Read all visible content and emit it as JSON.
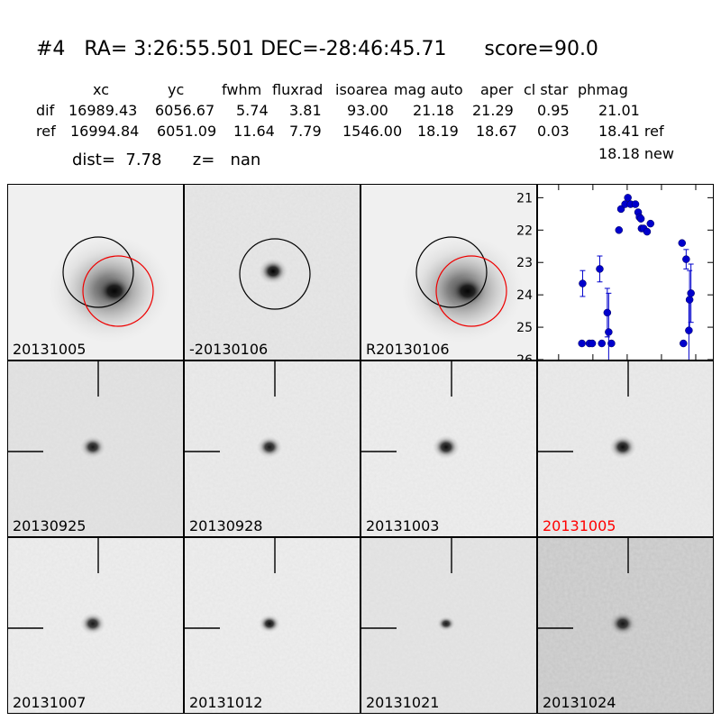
{
  "header": {
    "title": "#4   RA= 3:26:55.501 DEC=-28:46:45.71      score=90.0",
    "columns": [
      "xc",
      "yc",
      "fwhm",
      "fluxrad",
      "isoarea",
      "mag auto",
      "aper",
      "cl star",
      "phmag"
    ],
    "rows": [
      {
        "label": "dif",
        "values": [
          "16989.43",
          "6056.67",
          "5.74",
          "3.81",
          "93.00",
          "21.18",
          "21.29",
          "0.95",
          "21.01"
        ]
      },
      {
        "label": "ref",
        "values": [
          "16994.84",
          "6051.09",
          "11.64",
          "7.79",
          "1546.00",
          "18.19",
          "18.67",
          "0.03",
          "18.41 ref"
        ]
      }
    ],
    "dist_line": "dist=  7.78      z=   nan",
    "new_mag": "18.18 new"
  },
  "top_panels": [
    {
      "label": "20131005",
      "label_color": "#000000",
      "circles": "black+red"
    },
    {
      "label": "-20130106",
      "label_color": "#000000",
      "circles": "black"
    },
    {
      "label": "R20130106",
      "label_color": "#000000",
      "circles": "black+red"
    }
  ],
  "cutouts": [
    {
      "label": "20130925",
      "label_color": "#000000"
    },
    {
      "label": "20130928",
      "label_color": "#000000"
    },
    {
      "label": "20131003",
      "label_color": "#000000"
    },
    {
      "label": "20131005",
      "label_color": "#ff0000"
    },
    {
      "label": "20131007",
      "label_color": "#000000"
    },
    {
      "label": "20131012",
      "label_color": "#000000"
    },
    {
      "label": "20131021",
      "label_color": "#000000"
    },
    {
      "label": "20131024",
      "label_color": "#000000"
    }
  ],
  "chart_data": {
    "type": "scatter",
    "title": "",
    "xlabel": "",
    "ylabel": "",
    "xlim": [
      -130,
      125
    ],
    "ylim": [
      26,
      20.6
    ],
    "y_inverted": true,
    "xticks": [
      -100,
      -50,
      0,
      50,
      100
    ],
    "yticks": [
      21,
      22,
      23,
      24,
      25,
      26
    ],
    "grid": false,
    "marker_color": "#0000cc",
    "errorbar_color": "#0000cc",
    "points": [
      {
        "x": -66,
        "y": 25.5,
        "err": 0
      },
      {
        "x": -65,
        "y": 23.65,
        "err": 0.4
      },
      {
        "x": -55,
        "y": 25.5,
        "err": 0
      },
      {
        "x": -51,
        "y": 25.5,
        "err": 0
      },
      {
        "x": -40,
        "y": 23.2,
        "err": 0.4
      },
      {
        "x": -37,
        "y": 25.5,
        "err": 0
      },
      {
        "x": -29,
        "y": 24.55,
        "err": 0.75
      },
      {
        "x": -27,
        "y": 25.15,
        "err": 1.2
      },
      {
        "x": -23,
        "y": 25.5,
        "err": 0
      },
      {
        "x": -12,
        "y": 22.0,
        "err": 0
      },
      {
        "x": -9,
        "y": 21.35,
        "err": 0
      },
      {
        "x": -3,
        "y": 21.2,
        "err": 0
      },
      {
        "x": 1,
        "y": 21.0,
        "err": 0
      },
      {
        "x": 5,
        "y": 21.2,
        "err": 0
      },
      {
        "x": 12,
        "y": 21.2,
        "err": 0
      },
      {
        "x": 16,
        "y": 21.45,
        "err": 0
      },
      {
        "x": 18,
        "y": 21.6,
        "err": 0
      },
      {
        "x": 20,
        "y": 21.65,
        "err": 0
      },
      {
        "x": 21,
        "y": 21.95,
        "err": 0
      },
      {
        "x": 24,
        "y": 21.95,
        "err": 0
      },
      {
        "x": 29,
        "y": 22.05,
        "err": 0
      },
      {
        "x": 34,
        "y": 21.8,
        "err": 0
      },
      {
        "x": 80,
        "y": 22.4,
        "err": 0
      },
      {
        "x": 82,
        "y": 25.5,
        "err": 0
      },
      {
        "x": 86,
        "y": 22.9,
        "err": 0.3
      },
      {
        "x": 90,
        "y": 25.1,
        "err": 0.9
      },
      {
        "x": 91,
        "y": 24.15,
        "err": 0.9
      },
      {
        "x": 93,
        "y": 23.95,
        "err": 0.9
      }
    ]
  }
}
